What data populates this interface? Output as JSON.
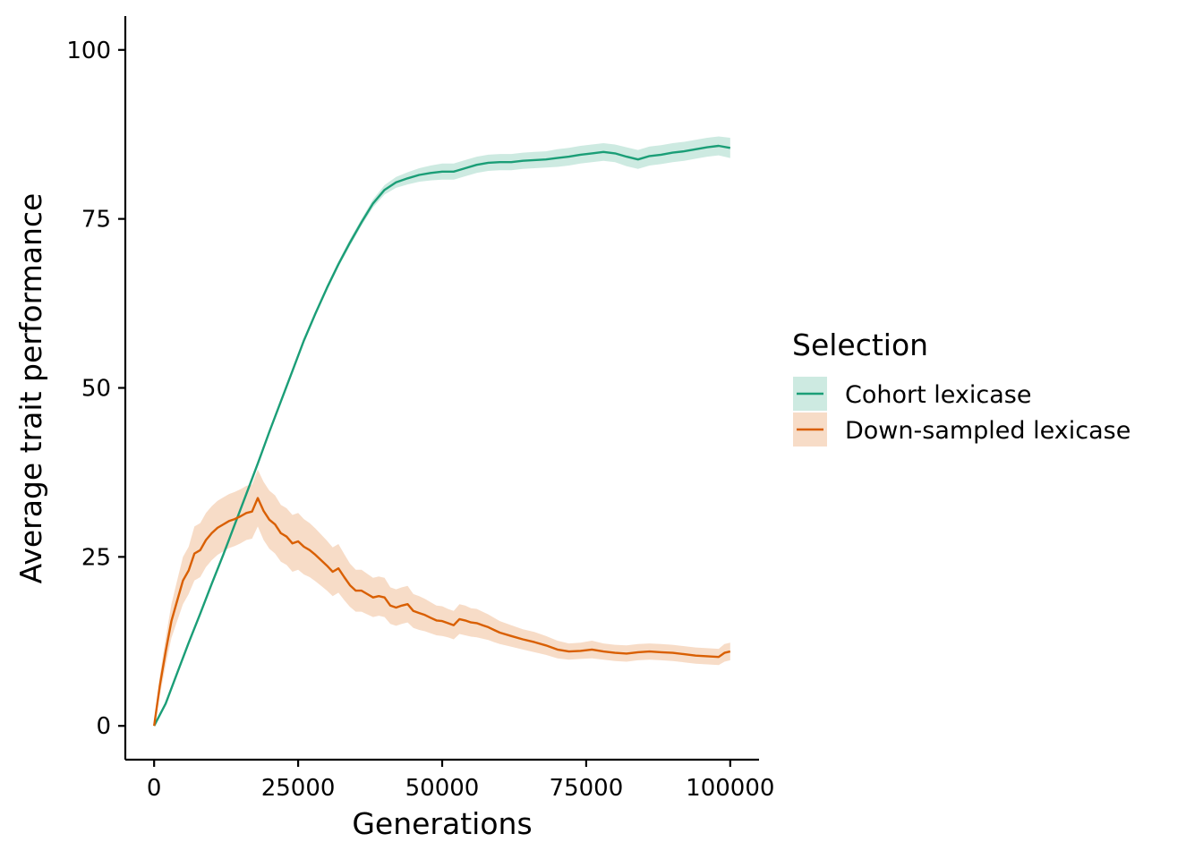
{
  "chart_data": {
    "type": "line",
    "title": "",
    "xlabel": "Generations",
    "ylabel": "Average trait performance",
    "xlim": [
      -5000,
      105000
    ],
    "ylim": [
      -5,
      105
    ],
    "x_ticks": [
      0,
      25000,
      50000,
      75000,
      100000
    ],
    "x_tick_labels": [
      "0",
      "25000",
      "50000",
      "75000",
      "100000"
    ],
    "y_ticks": [
      0,
      25,
      50,
      75,
      100
    ],
    "y_tick_labels": [
      "0",
      "25",
      "50",
      "75",
      "100"
    ],
    "grid": false,
    "legend": {
      "title": "Selection",
      "position": "right"
    },
    "series": [
      {
        "name": "Cohort lexicase",
        "color": "#1b9e77",
        "ribbon_color": "#1b9e77",
        "x": [
          0,
          2000,
          4000,
          6000,
          8000,
          10000,
          12000,
          14000,
          16000,
          18000,
          20000,
          22000,
          24000,
          26000,
          28000,
          30000,
          32000,
          34000,
          36000,
          38000,
          40000,
          42000,
          44000,
          46000,
          48000,
          50000,
          52000,
          54000,
          56000,
          58000,
          60000,
          62000,
          64000,
          66000,
          68000,
          70000,
          72000,
          74000,
          76000,
          78000,
          80000,
          82000,
          84000,
          86000,
          88000,
          90000,
          92000,
          94000,
          96000,
          98000,
          100000
        ],
        "y": [
          0,
          3.3,
          7.8,
          12.3,
          16.6,
          21.0,
          25.3,
          29.8,
          34.3,
          38.8,
          43.5,
          48.0,
          52.5,
          57.0,
          61.0,
          64.8,
          68.3,
          71.5,
          74.5,
          77.3,
          79.3,
          80.4,
          81.0,
          81.5,
          81.8,
          82.0,
          82.0,
          82.5,
          83.0,
          83.3,
          83.4,
          83.4,
          83.6,
          83.7,
          83.8,
          84.0,
          84.2,
          84.5,
          84.7,
          84.9,
          84.7,
          84.2,
          83.8,
          84.3,
          84.5,
          84.8,
          85.0,
          85.3,
          85.6,
          85.8,
          85.5
        ],
        "lower": [
          0,
          3.1,
          7.6,
          12.1,
          16.4,
          20.8,
          25.1,
          29.6,
          34.1,
          38.6,
          43.2,
          47.7,
          52.2,
          56.7,
          60.7,
          64.4,
          67.9,
          71.0,
          74.0,
          76.7,
          78.6,
          79.6,
          80.1,
          80.5,
          80.7,
          80.8,
          80.8,
          81.3,
          81.8,
          82.1,
          82.2,
          82.2,
          82.4,
          82.5,
          82.6,
          82.7,
          82.9,
          83.2,
          83.4,
          83.6,
          83.4,
          82.8,
          82.4,
          82.9,
          83.1,
          83.4,
          83.6,
          83.9,
          84.2,
          84.4,
          84.0
        ],
        "upper": [
          0,
          3.5,
          8.0,
          12.5,
          16.8,
          21.2,
          25.5,
          30.0,
          34.5,
          39.0,
          43.8,
          48.3,
          52.8,
          57.3,
          61.3,
          65.2,
          68.7,
          72.0,
          75.0,
          77.9,
          80.0,
          81.2,
          81.9,
          82.5,
          82.9,
          83.2,
          83.2,
          83.7,
          84.2,
          84.5,
          84.6,
          84.6,
          84.8,
          84.9,
          85.0,
          85.3,
          85.5,
          85.8,
          86.0,
          86.2,
          86.0,
          85.6,
          85.2,
          85.7,
          85.9,
          86.2,
          86.4,
          86.7,
          87.0,
          87.2,
          87.0
        ]
      },
      {
        "name": "Down-sampled lexicase",
        "color": "#d95f02",
        "ribbon_color": "#d95f02",
        "x": [
          0,
          1000,
          2000,
          3000,
          4000,
          5000,
          6000,
          7000,
          8000,
          9000,
          10000,
          11000,
          12000,
          13000,
          14000,
          15000,
          16000,
          17000,
          18000,
          19000,
          20000,
          21000,
          22000,
          23000,
          24000,
          25000,
          26000,
          27000,
          28000,
          29000,
          30000,
          31000,
          32000,
          33000,
          34000,
          35000,
          36000,
          37000,
          38000,
          39000,
          40000,
          41000,
          42000,
          43000,
          44000,
          45000,
          46000,
          47000,
          48000,
          49000,
          50000,
          51000,
          52000,
          53000,
          54000,
          55000,
          56000,
          57000,
          58000,
          59000,
          60000,
          62000,
          64000,
          66000,
          68000,
          70000,
          72000,
          74000,
          76000,
          78000,
          80000,
          82000,
          84000,
          86000,
          88000,
          90000,
          92000,
          94000,
          96000,
          98000,
          99000,
          100000
        ],
        "y": [
          0,
          6.0,
          11.0,
          15.5,
          18.5,
          21.5,
          23.0,
          25.5,
          26.0,
          27.5,
          28.5,
          29.3,
          29.8,
          30.3,
          30.6,
          31.0,
          31.5,
          31.7,
          33.7,
          31.8,
          30.5,
          29.8,
          28.5,
          28.0,
          27.0,
          27.3,
          26.5,
          26.0,
          25.3,
          24.5,
          23.7,
          22.8,
          23.3,
          22.0,
          20.8,
          20.0,
          20.0,
          19.5,
          19.0,
          19.2,
          19.0,
          17.8,
          17.5,
          17.8,
          18.0,
          17.0,
          16.7,
          16.4,
          16.0,
          15.6,
          15.5,
          15.2,
          14.9,
          15.8,
          15.6,
          15.3,
          15.2,
          14.9,
          14.6,
          14.2,
          13.8,
          13.3,
          12.8,
          12.4,
          11.9,
          11.3,
          11.0,
          11.1,
          11.3,
          11.0,
          10.8,
          10.7,
          10.9,
          11.0,
          10.9,
          10.8,
          10.6,
          10.4,
          10.3,
          10.2,
          10.8,
          11.0
        ],
        "lower": [
          0,
          4.5,
          9.0,
          13.0,
          15.5,
          18.0,
          19.5,
          21.5,
          22.0,
          23.5,
          24.5,
          25.3,
          25.8,
          26.3,
          26.6,
          27.0,
          27.5,
          27.7,
          29.5,
          27.5,
          26.2,
          25.5,
          24.3,
          23.8,
          22.8,
          23.1,
          22.4,
          22.0,
          21.4,
          20.7,
          20.0,
          19.2,
          19.7,
          18.6,
          17.6,
          16.9,
          16.9,
          16.5,
          16.1,
          16.3,
          16.1,
          15.1,
          14.8,
          15.1,
          15.3,
          14.5,
          14.2,
          14.0,
          13.7,
          13.4,
          13.3,
          13.1,
          12.8,
          13.6,
          13.4,
          13.2,
          13.1,
          12.9,
          12.7,
          12.4,
          12.1,
          11.7,
          11.3,
          10.9,
          10.5,
          10.0,
          9.8,
          9.9,
          10.0,
          9.8,
          9.6,
          9.5,
          9.7,
          9.8,
          9.7,
          9.6,
          9.4,
          9.2,
          9.1,
          9.0,
          9.5,
          9.7
        ],
        "upper": [
          0,
          7.5,
          13.0,
          18.0,
          21.5,
          25.0,
          26.5,
          29.5,
          30.0,
          31.5,
          32.5,
          33.3,
          33.8,
          34.3,
          34.6,
          35.0,
          35.5,
          35.7,
          37.9,
          36.1,
          34.8,
          34.1,
          32.7,
          32.2,
          31.2,
          31.5,
          30.6,
          30.0,
          29.2,
          28.3,
          27.4,
          26.4,
          26.9,
          25.4,
          24.0,
          23.1,
          23.1,
          22.5,
          21.9,
          22.1,
          21.9,
          20.5,
          20.2,
          20.5,
          20.7,
          19.5,
          19.2,
          18.8,
          18.3,
          17.8,
          17.7,
          17.3,
          17.0,
          18.0,
          17.8,
          17.4,
          17.3,
          16.9,
          16.5,
          16.0,
          15.5,
          14.9,
          14.3,
          13.9,
          13.3,
          12.6,
          12.2,
          12.3,
          12.6,
          12.2,
          12.0,
          11.9,
          12.1,
          12.2,
          12.1,
          12.0,
          11.8,
          11.6,
          11.5,
          11.4,
          12.1,
          12.3
        ]
      }
    ]
  }
}
